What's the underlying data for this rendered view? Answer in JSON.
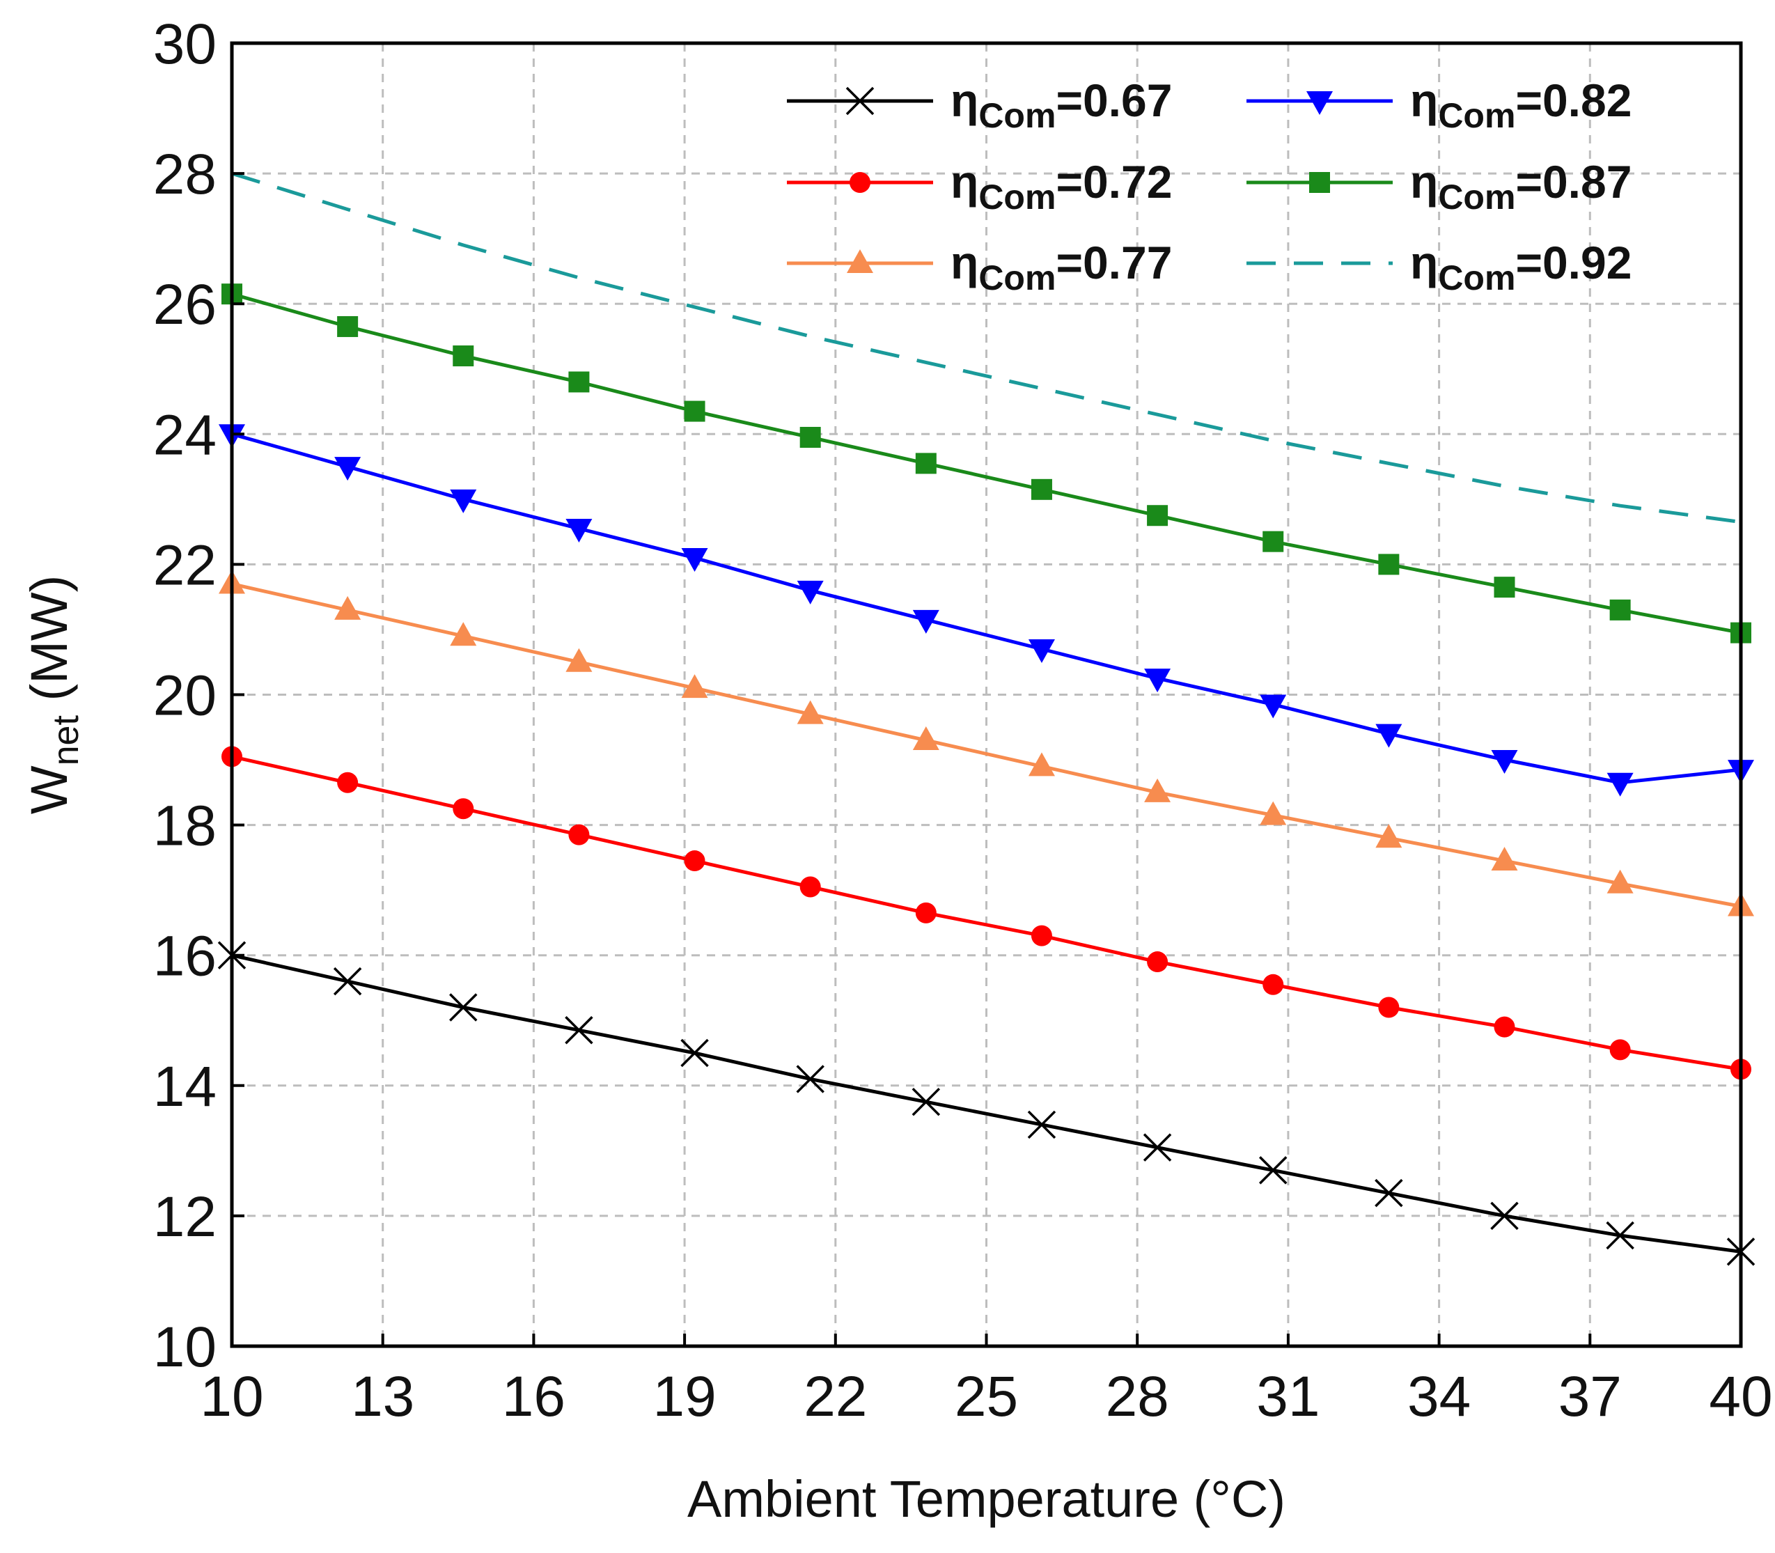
{
  "chart_data": {
    "type": "line",
    "title": "",
    "xlabel": "Ambient Temperature (°C)",
    "ylabel_main": "W",
    "ylabel_sub": "net",
    "ylabel_unit": " (MW)",
    "xlim": [
      10,
      40
    ],
    "ylim": [
      10,
      30
    ],
    "xticks": [
      10,
      13,
      16,
      19,
      22,
      25,
      28,
      31,
      34,
      37,
      40
    ],
    "yticks": [
      10,
      12,
      14,
      16,
      18,
      20,
      22,
      24,
      26,
      28,
      30
    ],
    "grid": true,
    "legend_position": "top-right",
    "legend_symbol": "η",
    "legend_subscript": "Com",
    "x": [
      10,
      12.3,
      14.6,
      16.9,
      19.2,
      21.5,
      23.8,
      26.1,
      28.4,
      30.7,
      33.0,
      35.3,
      37.6,
      40
    ],
    "series": [
      {
        "name": "ηCom=0.67",
        "legend_value": "=0.67",
        "color": "#000000",
        "marker": "x",
        "dashed": false,
        "values": [
          16.0,
          15.6,
          15.2,
          14.85,
          14.5,
          14.1,
          13.75,
          13.4,
          13.05,
          12.7,
          12.35,
          12.0,
          11.7,
          11.45
        ]
      },
      {
        "name": "ηCom=0.72",
        "legend_value": "=0.72",
        "color": "#ff0000",
        "marker": "circle",
        "dashed": false,
        "values": [
          19.05,
          18.65,
          18.25,
          17.85,
          17.45,
          17.05,
          16.65,
          16.3,
          15.9,
          15.55,
          15.2,
          14.9,
          14.55,
          14.25
        ]
      },
      {
        "name": "ηCom=0.77",
        "legend_value": "=0.77",
        "color": "#f78c4f",
        "marker": "triangle-up",
        "dashed": false,
        "values": [
          21.7,
          21.3,
          20.9,
          20.5,
          20.1,
          19.7,
          19.3,
          18.9,
          18.5,
          18.15,
          17.8,
          17.45,
          17.1,
          16.75
        ]
      },
      {
        "name": "ηCom=0.82",
        "legend_value": "=0.82",
        "color": "#0000ff",
        "marker": "triangle-down",
        "dashed": false,
        "values": [
          24.0,
          23.5,
          23.0,
          22.55,
          22.1,
          21.6,
          21.15,
          20.7,
          20.25,
          19.85,
          19.4,
          19.0,
          18.65,
          18.85
        ]
      },
      {
        "name": "ηCom=0.87",
        "legend_value": "=0.87",
        "color": "#1a8a1a",
        "marker": "square",
        "dashed": false,
        "values": [
          26.15,
          25.65,
          25.2,
          24.8,
          24.35,
          23.95,
          23.55,
          23.15,
          22.75,
          22.35,
          22.0,
          21.65,
          21.3,
          20.95
        ]
      },
      {
        "name": "ηCom=0.92",
        "legend_value": "=0.92",
        "color": "#1a9a9a",
        "marker": "none",
        "dashed": true,
        "values": [
          28.0,
          27.45,
          26.9,
          26.4,
          25.95,
          25.5,
          25.1,
          24.7,
          24.3,
          23.9,
          23.55,
          23.2,
          22.9,
          22.65
        ]
      }
    ]
  }
}
